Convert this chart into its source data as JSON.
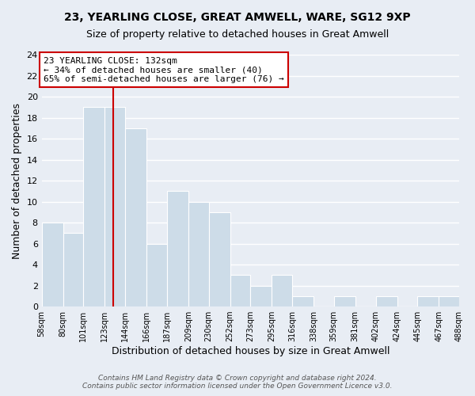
{
  "title": "23, YEARLING CLOSE, GREAT AMWELL, WARE, SG12 9XP",
  "subtitle": "Size of property relative to detached houses in Great Amwell",
  "xlabel": "Distribution of detached houses by size in Great Amwell",
  "ylabel": "Number of detached properties",
  "bin_edges": [
    58,
    80,
    101,
    123,
    144,
    166,
    187,
    209,
    230,
    252,
    273,
    295,
    316,
    338,
    359,
    381,
    402,
    424,
    445,
    467,
    488
  ],
  "counts": [
    8,
    7,
    19,
    19,
    17,
    6,
    11,
    10,
    9,
    3,
    2,
    3,
    1,
    0,
    1,
    0,
    1,
    0,
    1,
    1
  ],
  "bar_color": "#cddce8",
  "bar_edge_color": "#ffffff",
  "grid_color": "#ffffff",
  "bg_color": "#e8edf4",
  "red_line_x": 132,
  "annotation_title": "23 YEARLING CLOSE: 132sqm",
  "annotation_line1": "← 34% of detached houses are smaller (40)",
  "annotation_line2": "65% of semi-detached houses are larger (76) →",
  "annotation_box_color": "#ffffff",
  "annotation_box_edge": "#cc0000",
  "red_line_color": "#cc0000",
  "footer1": "Contains HM Land Registry data © Crown copyright and database right 2024.",
  "footer2": "Contains public sector information licensed under the Open Government Licence v3.0.",
  "ylim": [
    0,
    24
  ],
  "yticks": [
    0,
    2,
    4,
    6,
    8,
    10,
    12,
    14,
    16,
    18,
    20,
    22,
    24
  ],
  "tick_labels": [
    "58sqm",
    "80sqm",
    "101sqm",
    "123sqm",
    "144sqm",
    "166sqm",
    "187sqm",
    "209sqm",
    "230sqm",
    "252sqm",
    "273sqm",
    "295sqm",
    "316sqm",
    "338sqm",
    "359sqm",
    "381sqm",
    "402sqm",
    "424sqm",
    "445sqm",
    "467sqm",
    "488sqm"
  ]
}
